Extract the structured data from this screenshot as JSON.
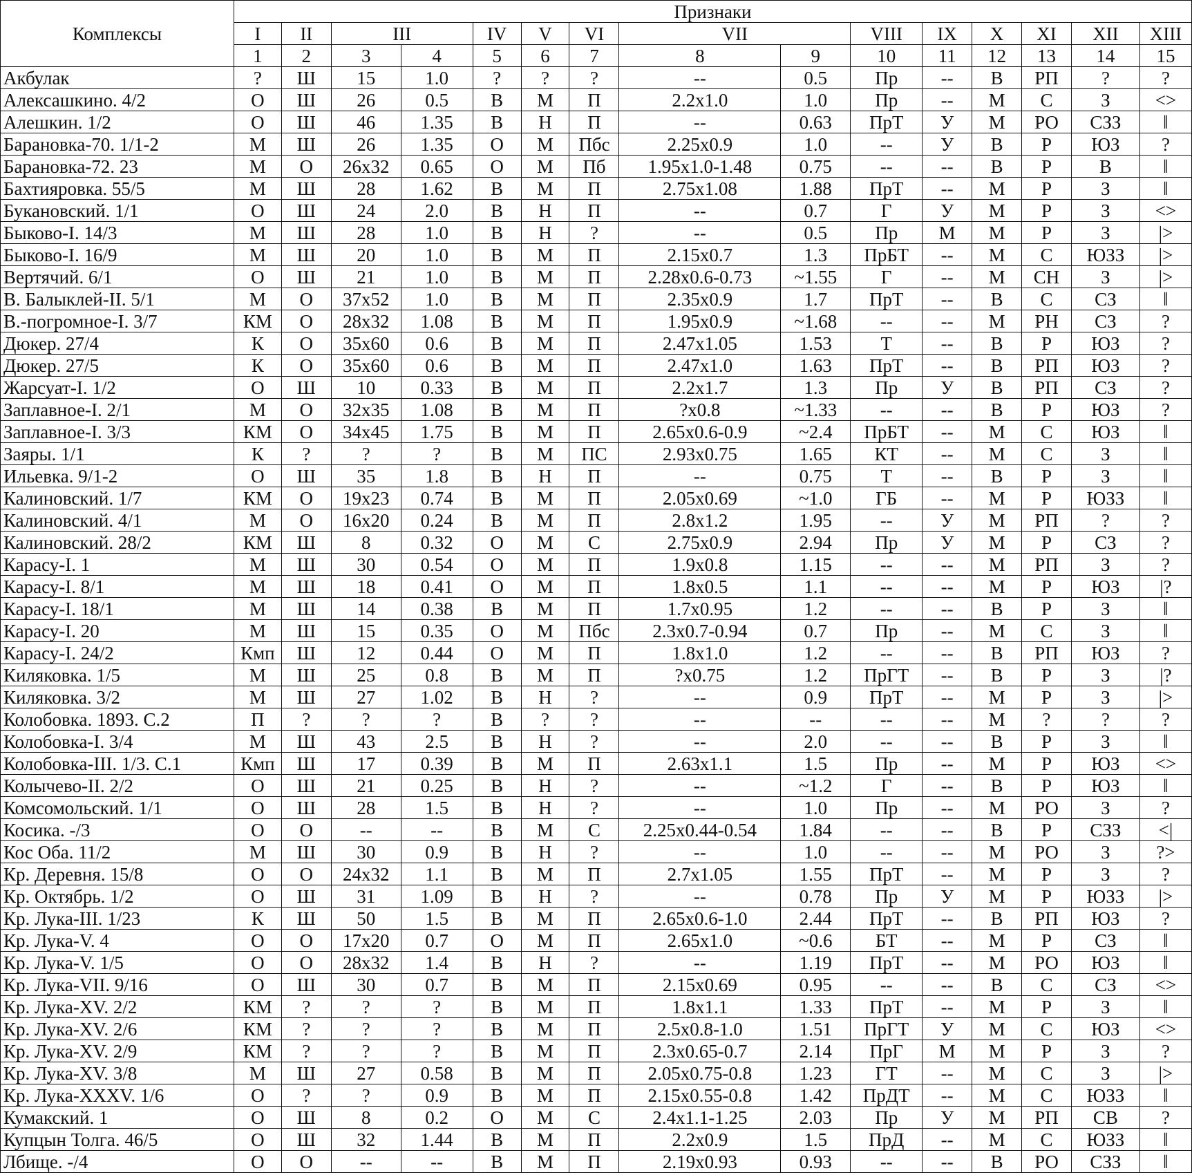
{
  "header": {
    "complexes": "Комплексы",
    "features": "Признаки",
    "groups": [
      "I",
      "II",
      "III",
      "IV",
      "V",
      "VI",
      "VII",
      "VIII",
      "IX",
      "X",
      "XI",
      "XII",
      "XIII"
    ],
    "group_spans": [
      1,
      1,
      2,
      1,
      1,
      1,
      2,
      1,
      1,
      1,
      1,
      1,
      1
    ],
    "numbers": [
      "1",
      "2",
      "3",
      "4",
      "5",
      "6",
      "7",
      "8",
      "9",
      "10",
      "11",
      "12",
      "13",
      "14",
      "15"
    ]
  },
  "rows": [
    [
      "Акбулак",
      "?",
      "Ш",
      "15",
      "1.0",
      "?",
      "?",
      "?",
      "--",
      "0.5",
      "Пр",
      "--",
      "В",
      "РП",
      "?",
      "?"
    ],
    [
      "Алексашкино. 4/2",
      "О",
      "Ш",
      "26",
      "0.5",
      "В",
      "М",
      "П",
      "2.2x1.0",
      "1.0",
      "Пр",
      "--",
      "М",
      "С",
      "З",
      "<>"
    ],
    [
      "Алешкин. 1/2",
      "О",
      "Ш",
      "46",
      "1.35",
      "В",
      "Н",
      "П",
      "--",
      "0.63",
      "ПрТ",
      "У",
      "М",
      "РО",
      "СЗЗ",
      "‖"
    ],
    [
      "Барановка-70. 1/1-2",
      "М",
      "Ш",
      "26",
      "1.35",
      "О",
      "М",
      "Пбс",
      "2.25x0.9",
      "1.0",
      "--",
      "У",
      "В",
      "Р",
      "ЮЗ",
      "?"
    ],
    [
      "Барановка-72. 23",
      "М",
      "О",
      "26x32",
      "0.65",
      "О",
      "М",
      "Пб",
      "1.95x1.0-1.48",
      "0.75",
      "--",
      "--",
      "В",
      "Р",
      "В",
      "‖"
    ],
    [
      "Бахтияровка. 55/5",
      "М",
      "Ш",
      "28",
      "1.62",
      "В",
      "М",
      "П",
      "2.75x1.08",
      "1.88",
      "ПрТ",
      "--",
      "М",
      "Р",
      "З",
      "‖"
    ],
    [
      "Букановский. 1/1",
      "О",
      "Ш",
      "24",
      "2.0",
      "В",
      "Н",
      "П",
      "--",
      "0.7",
      "Г",
      "У",
      "М",
      "Р",
      "З",
      "<>"
    ],
    [
      "Быково-I. 14/3",
      "М",
      "Ш",
      "28",
      "1.0",
      "В",
      "Н",
      "?",
      "--",
      "0.5",
      "Пр",
      "М",
      "М",
      "Р",
      "З",
      "|>"
    ],
    [
      "Быково-I. 16/9",
      "М",
      "Ш",
      "20",
      "1.0",
      "В",
      "М",
      "П",
      "2.15x0.7",
      "1.3",
      "ПрБТ",
      "--",
      "М",
      "С",
      "ЮЗЗ",
      "|>"
    ],
    [
      "Вертячий. 6/1",
      "О",
      "Ш",
      "21",
      "1.0",
      "В",
      "М",
      "П",
      "2.28x0.6-0.73",
      "~1.55",
      "Г",
      "--",
      "М",
      "СН",
      "З",
      "|>"
    ],
    [
      "В. Балыклей-II. 5/1",
      "М",
      "О",
      "37x52",
      "1.0",
      "В",
      "М",
      "П",
      "2.35x0.9",
      "1.7",
      "ПрТ",
      "--",
      "В",
      "С",
      "СЗ",
      "‖"
    ],
    [
      "В.-погромное-I. 3/7",
      "КМ",
      "О",
      "28x32",
      "1.08",
      "В",
      "М",
      "П",
      "1.95x0.9",
      "~1.68",
      "--",
      "--",
      "М",
      "РН",
      "СЗ",
      "?"
    ],
    [
      "Дюкер. 27/4",
      "К",
      "О",
      "35x60",
      "0.6",
      "В",
      "М",
      "П",
      "2.47x1.05",
      "1.53",
      "Т",
      "--",
      "В",
      "Р",
      "ЮЗ",
      "?"
    ],
    [
      "Дюкер. 27/5",
      "К",
      "О",
      "35x60",
      "0.6",
      "В",
      "М",
      "П",
      "2.47x1.0",
      "1.63",
      "ПрТ",
      "--",
      "В",
      "РП",
      "ЮЗ",
      "?"
    ],
    [
      "Жарсуат-I. 1/2",
      "О",
      "Ш",
      "10",
      "0.33",
      "В",
      "М",
      "П",
      "2.2x1.7",
      "1.3",
      "Пр",
      "У",
      "В",
      "РП",
      "СЗ",
      "?"
    ],
    [
      "Заплавное-I. 2/1",
      "М",
      "О",
      "32x35",
      "1.08",
      "В",
      "М",
      "П",
      "?x0.8",
      "~1.33",
      "--",
      "--",
      "В",
      "Р",
      "ЮЗ",
      "?"
    ],
    [
      "Заплавное-I. 3/3",
      "КМ",
      "О",
      "34x45",
      "1.75",
      "В",
      "М",
      "П",
      "2.65x0.6-0.9",
      "~2.4",
      "ПрБТ",
      "--",
      "М",
      "С",
      "ЮЗ",
      "‖"
    ],
    [
      "Заяры. 1/1",
      "К",
      "?",
      "?",
      "?",
      "В",
      "М",
      "ПС",
      "2.93x0.75",
      "1.65",
      "КТ",
      "--",
      "М",
      "С",
      "З",
      "‖"
    ],
    [
      "Ильевка. 9/1-2",
      "О",
      "Ш",
      "35",
      "1.8",
      "В",
      "Н",
      "П",
      "--",
      "0.75",
      "Т",
      "--",
      "В",
      "Р",
      "З",
      "‖"
    ],
    [
      "Калиновский. 1/7",
      "КМ",
      "О",
      "19x23",
      "0.74",
      "В",
      "М",
      "П",
      "2.05x0.69",
      "~1.0",
      "ГБ",
      "--",
      "М",
      "Р",
      "ЮЗЗ",
      "‖"
    ],
    [
      "Калиновский. 4/1",
      "М",
      "О",
      "16x20",
      "0.24",
      "В",
      "М",
      "П",
      "2.8x1.2",
      "1.95",
      "--",
      "У",
      "М",
      "РП",
      "?",
      "?"
    ],
    [
      "Калиновский. 28/2",
      "КМ",
      "Ш",
      "8",
      "0.32",
      "О",
      "М",
      "С",
      "2.75x0.9",
      "2.94",
      "Пр",
      "У",
      "М",
      "Р",
      "СЗ",
      "?"
    ],
    [
      "Карасу-I. 1",
      "М",
      "Ш",
      "30",
      "0.54",
      "О",
      "М",
      "П",
      "1.9x0.8",
      "1.15",
      "--",
      "--",
      "М",
      "РП",
      "З",
      "?"
    ],
    [
      "Карасу-I. 8/1",
      "М",
      "Ш",
      "18",
      "0.41",
      "О",
      "М",
      "П",
      "1.8x0.5",
      "1.1",
      "--",
      "--",
      "М",
      "Р",
      "ЮЗ",
      "|?"
    ],
    [
      "Карасу-I. 18/1",
      "М",
      "Ш",
      "14",
      "0.38",
      "В",
      "М",
      "П",
      "1.7x0.95",
      "1.2",
      "--",
      "--",
      "В",
      "Р",
      "З",
      "‖"
    ],
    [
      "Карасу-I. 20",
      "М",
      "Ш",
      "15",
      "0.35",
      "О",
      "М",
      "Пбс",
      "2.3x0.7-0.94",
      "0.7",
      "Пр",
      "--",
      "М",
      "С",
      "З",
      "‖"
    ],
    [
      "Карасу-I. 24/2",
      "Кмп",
      "Ш",
      "12",
      "0.44",
      "О",
      "М",
      "П",
      "1.8x1.0",
      "1.2",
      "--",
      "--",
      "В",
      "РП",
      "ЮЗ",
      "?"
    ],
    [
      "Киляковка. 1/5",
      "М",
      "Ш",
      "25",
      "0.8",
      "В",
      "М",
      "П",
      "?x0.75",
      "1.2",
      "ПрГТ",
      "--",
      "В",
      "Р",
      "З",
      "|?"
    ],
    [
      "Киляковка. 3/2",
      "М",
      "Ш",
      "27",
      "1.02",
      "В",
      "Н",
      "?",
      "--",
      "0.9",
      "ПрТ",
      "--",
      "М",
      "Р",
      "З",
      "|>"
    ],
    [
      "Колобовка. 1893. С.2",
      "П",
      "?",
      "?",
      "?",
      "В",
      "?",
      "?",
      "--",
      "--",
      "--",
      "--",
      "М",
      "?",
      "?",
      "?"
    ],
    [
      "Колобовка-I. 3/4",
      "М",
      "Ш",
      "43",
      "2.5",
      "В",
      "Н",
      "?",
      "--",
      "2.0",
      "--",
      "--",
      "В",
      "Р",
      "З",
      "‖"
    ],
    [
      "Колобовка-III. 1/3. С.1",
      "Кмп",
      "Ш",
      "17",
      "0.39",
      "В",
      "М",
      "П",
      "2.63x1.1",
      "1.5",
      "Пр",
      "--",
      "М",
      "Р",
      "ЮЗ",
      "<>"
    ],
    [
      "Колычево-II. 2/2",
      "О",
      "Ш",
      "21",
      "0.25",
      "В",
      "Н",
      "?",
      "--",
      "~1.2",
      "Г",
      "--",
      "В",
      "Р",
      "ЮЗ",
      "‖"
    ],
    [
      "Комсомольский. 1/1",
      "О",
      "Ш",
      "28",
      "1.5",
      "В",
      "Н",
      "?",
      "--",
      "1.0",
      "Пр",
      "--",
      "М",
      "РО",
      "З",
      "?"
    ],
    [
      "Косика. -/3",
      "О",
      "О",
      "--",
      "--",
      "В",
      "М",
      "С",
      "2.25x0.44-0.54",
      "1.84",
      "--",
      "--",
      "В",
      "Р",
      "СЗЗ",
      "<|"
    ],
    [
      "Кос Оба. 11/2",
      "М",
      "Ш",
      "30",
      "0.9",
      "В",
      "Н",
      "?",
      "--",
      "1.0",
      "--",
      "--",
      "М",
      "РО",
      "З",
      "?>"
    ],
    [
      "Кр. Деревня. 15/8",
      "О",
      "О",
      "24x32",
      "1.1",
      "В",
      "М",
      "П",
      "2.7x1.05",
      "1.55",
      "ПрТ",
      "--",
      "М",
      "Р",
      "З",
      "?"
    ],
    [
      "Кр. Октябрь. 1/2",
      "О",
      "Ш",
      "31",
      "1.09",
      "В",
      "Н",
      "?",
      "--",
      "0.78",
      "Пр",
      "У",
      "М",
      "Р",
      "ЮЗЗ",
      "|>"
    ],
    [
      "Кр. Лука-III. 1/23",
      "К",
      "Ш",
      "50",
      "1.5",
      "В",
      "М",
      "П",
      "2.65x0.6-1.0",
      "2.44",
      "ПрТ",
      "--",
      "В",
      "РП",
      "ЮЗ",
      "?"
    ],
    [
      "Кр. Лука-V. 4",
      "О",
      "О",
      "17x20",
      "0.7",
      "О",
      "М",
      "П",
      "2.65x1.0",
      "~0.6",
      "БТ",
      "--",
      "М",
      "Р",
      "СЗ",
      "‖"
    ],
    [
      "Кр. Лука-V. 1/5",
      "О",
      "О",
      "28x32",
      "1.4",
      "В",
      "Н",
      "?",
      "--",
      "1.19",
      "ПрТ",
      "--",
      "М",
      "РО",
      "ЮЗ",
      "‖"
    ],
    [
      "Кр. Лука-VII. 9/16",
      "О",
      "Ш",
      "30",
      "0.7",
      "В",
      "М",
      "П",
      "2.15x0.69",
      "0.95",
      "--",
      "--",
      "В",
      "С",
      "СЗ",
      "<>"
    ],
    [
      "Кр. Лука-XV. 2/2",
      "КМ",
      "?",
      "?",
      "?",
      "В",
      "М",
      "П",
      "1.8x1.1",
      "1.33",
      "ПрТ",
      "--",
      "М",
      "Р",
      "З",
      "‖"
    ],
    [
      "Кр. Лука-XV. 2/6",
      "КМ",
      "?",
      "?",
      "?",
      "В",
      "М",
      "П",
      "2.5x0.8-1.0",
      "1.51",
      "ПрГТ",
      "У",
      "М",
      "С",
      "ЮЗ",
      "<>"
    ],
    [
      "Кр. Лука-XV. 2/9",
      "КМ",
      "?",
      "?",
      "?",
      "В",
      "М",
      "П",
      "2.3x0.65-0.7",
      "2.14",
      "ПрГ",
      "М",
      "М",
      "Р",
      "З",
      "?"
    ],
    [
      "Кр. Лука-XV. 3/8",
      "М",
      "Ш",
      "27",
      "0.58",
      "В",
      "М",
      "П",
      "2.05x0.75-0.8",
      "1.23",
      "ГТ",
      "--",
      "М",
      "С",
      "З",
      "|>"
    ],
    [
      "Кр. Лука-XXXV. 1/6",
      "О",
      "?",
      "?",
      "0.9",
      "В",
      "М",
      "П",
      "2.15x0.55-0.8",
      "1.42",
      "ПрДТ",
      "--",
      "М",
      "С",
      "ЮЗЗ",
      "‖"
    ],
    [
      "Кумакский. 1",
      "О",
      "Ш",
      "8",
      "0.2",
      "О",
      "М",
      "С",
      "2.4x1.1-1.25",
      "2.03",
      "Пр",
      "У",
      "М",
      "РП",
      "СВ",
      "?"
    ],
    [
      "Купцын Толга. 46/5",
      "О",
      "Ш",
      "32",
      "1.44",
      "В",
      "М",
      "П",
      "2.2x0.9",
      "1.5",
      "ПрД",
      "--",
      "М",
      "С",
      "ЮЗЗ",
      "‖"
    ],
    [
      "Лбище. -/4",
      "О",
      "О",
      "--",
      "--",
      "В",
      "М",
      "П",
      "2.19x0.93",
      "0.93",
      "--",
      "--",
      "В",
      "РО",
      "СЗЗ",
      "‖"
    ]
  ]
}
